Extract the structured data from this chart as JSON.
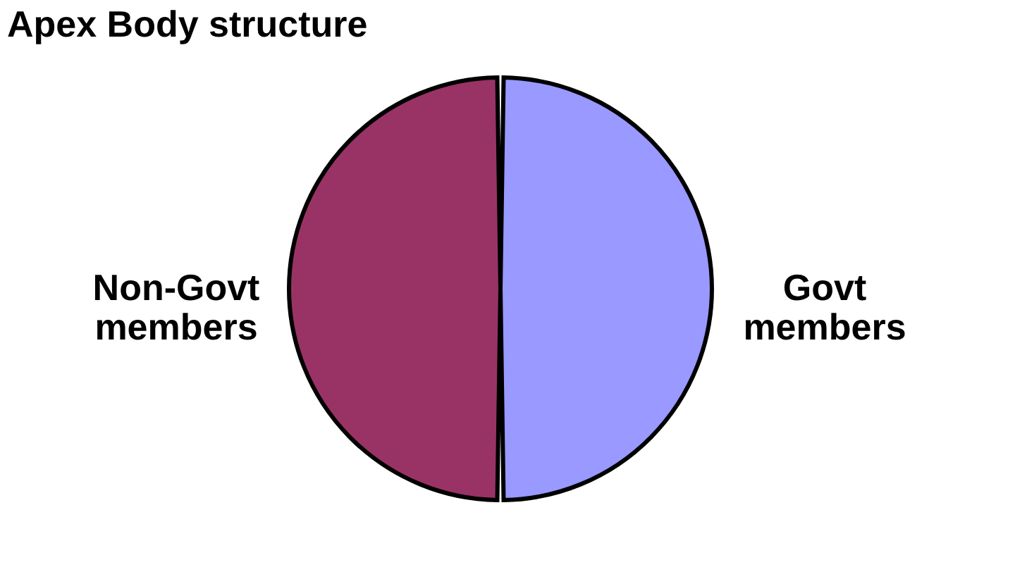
{
  "chart_data": {
    "type": "pie",
    "title": "Apex Body structure",
    "categories": [
      "Govt members",
      "Non-Govt members"
    ],
    "values": [
      50,
      50
    ],
    "colors": [
      "#9999ff",
      "#993366"
    ],
    "legend": false
  }
}
